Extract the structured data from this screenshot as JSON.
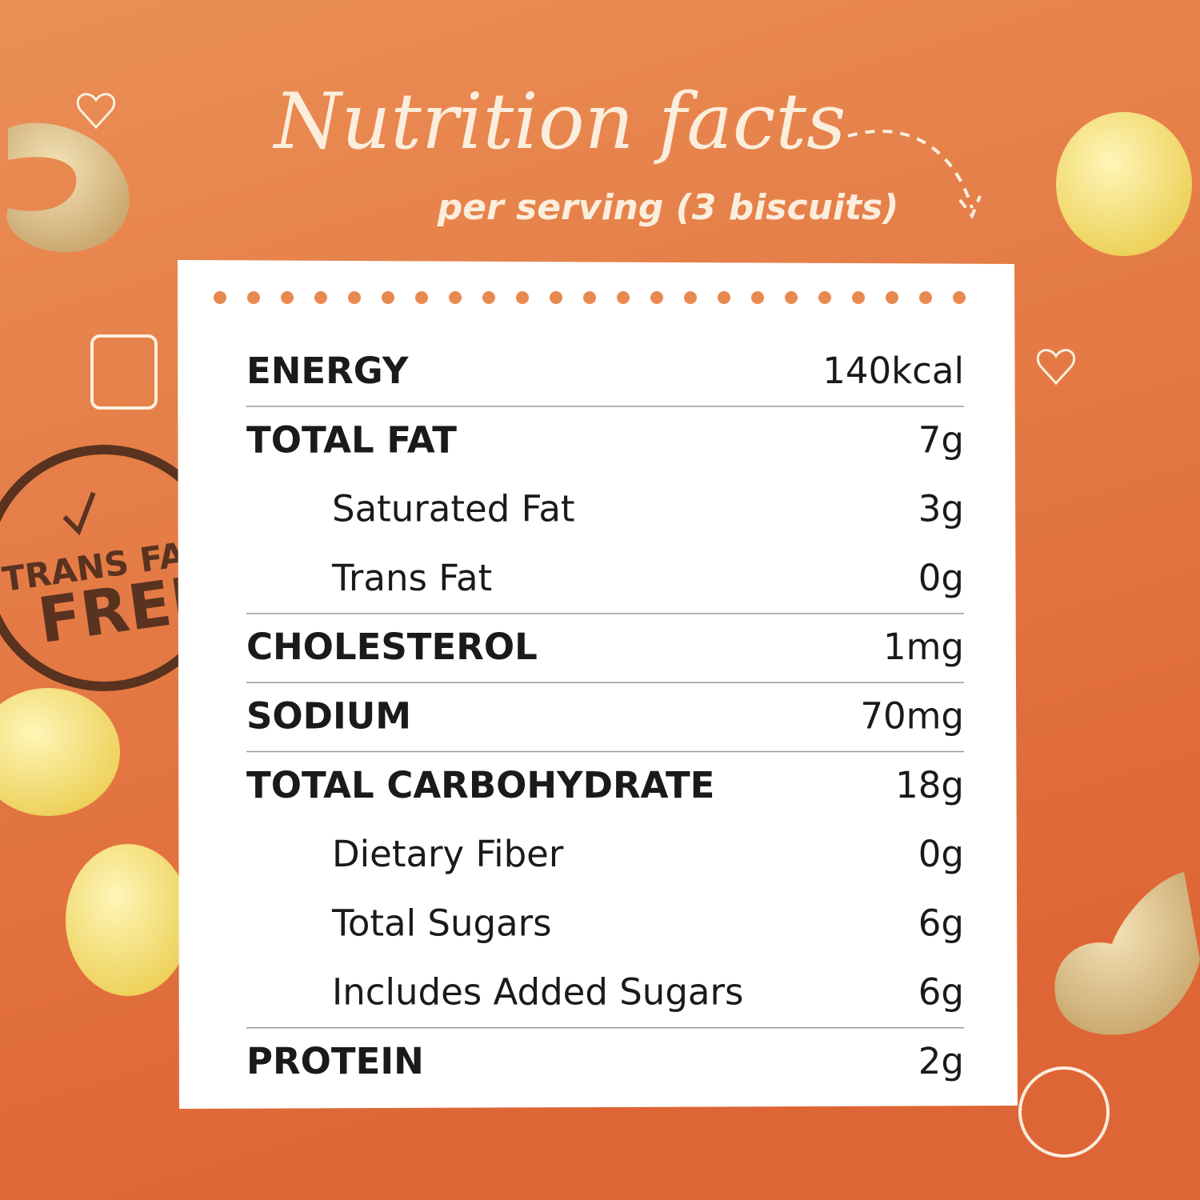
{
  "header": {
    "title": "Nutrition facts",
    "subtitle": "per serving (3 biscuits)"
  },
  "badge": {
    "line1": "TRANS FAT",
    "line2": "FREE"
  },
  "table": {
    "rows": [
      {
        "label": "ENERGY",
        "amount": "140kcal",
        "sub": []
      },
      {
        "label": "TOTAL FAT",
        "amount": "7g",
        "sub": [
          {
            "label": "Saturated Fat",
            "amount": "3g"
          },
          {
            "label": "Trans Fat",
            "amount": "0g"
          }
        ]
      },
      {
        "label": "CHOLESTEROL",
        "amount": "1mg",
        "sub": []
      },
      {
        "label": "SODIUM",
        "amount": "70mg",
        "sub": []
      },
      {
        "label": "TOTAL CARBOHYDRATE",
        "amount": "18g",
        "sub": [
          {
            "label": "Dietary Fiber",
            "amount": "0g"
          },
          {
            "label": "Total Sugars",
            "amount": "6g"
          },
          {
            "label": "Includes Added Sugars",
            "amount": "6g"
          }
        ]
      },
      {
        "label": "PROTEIN",
        "amount": "2g",
        "sub": []
      }
    ]
  }
}
